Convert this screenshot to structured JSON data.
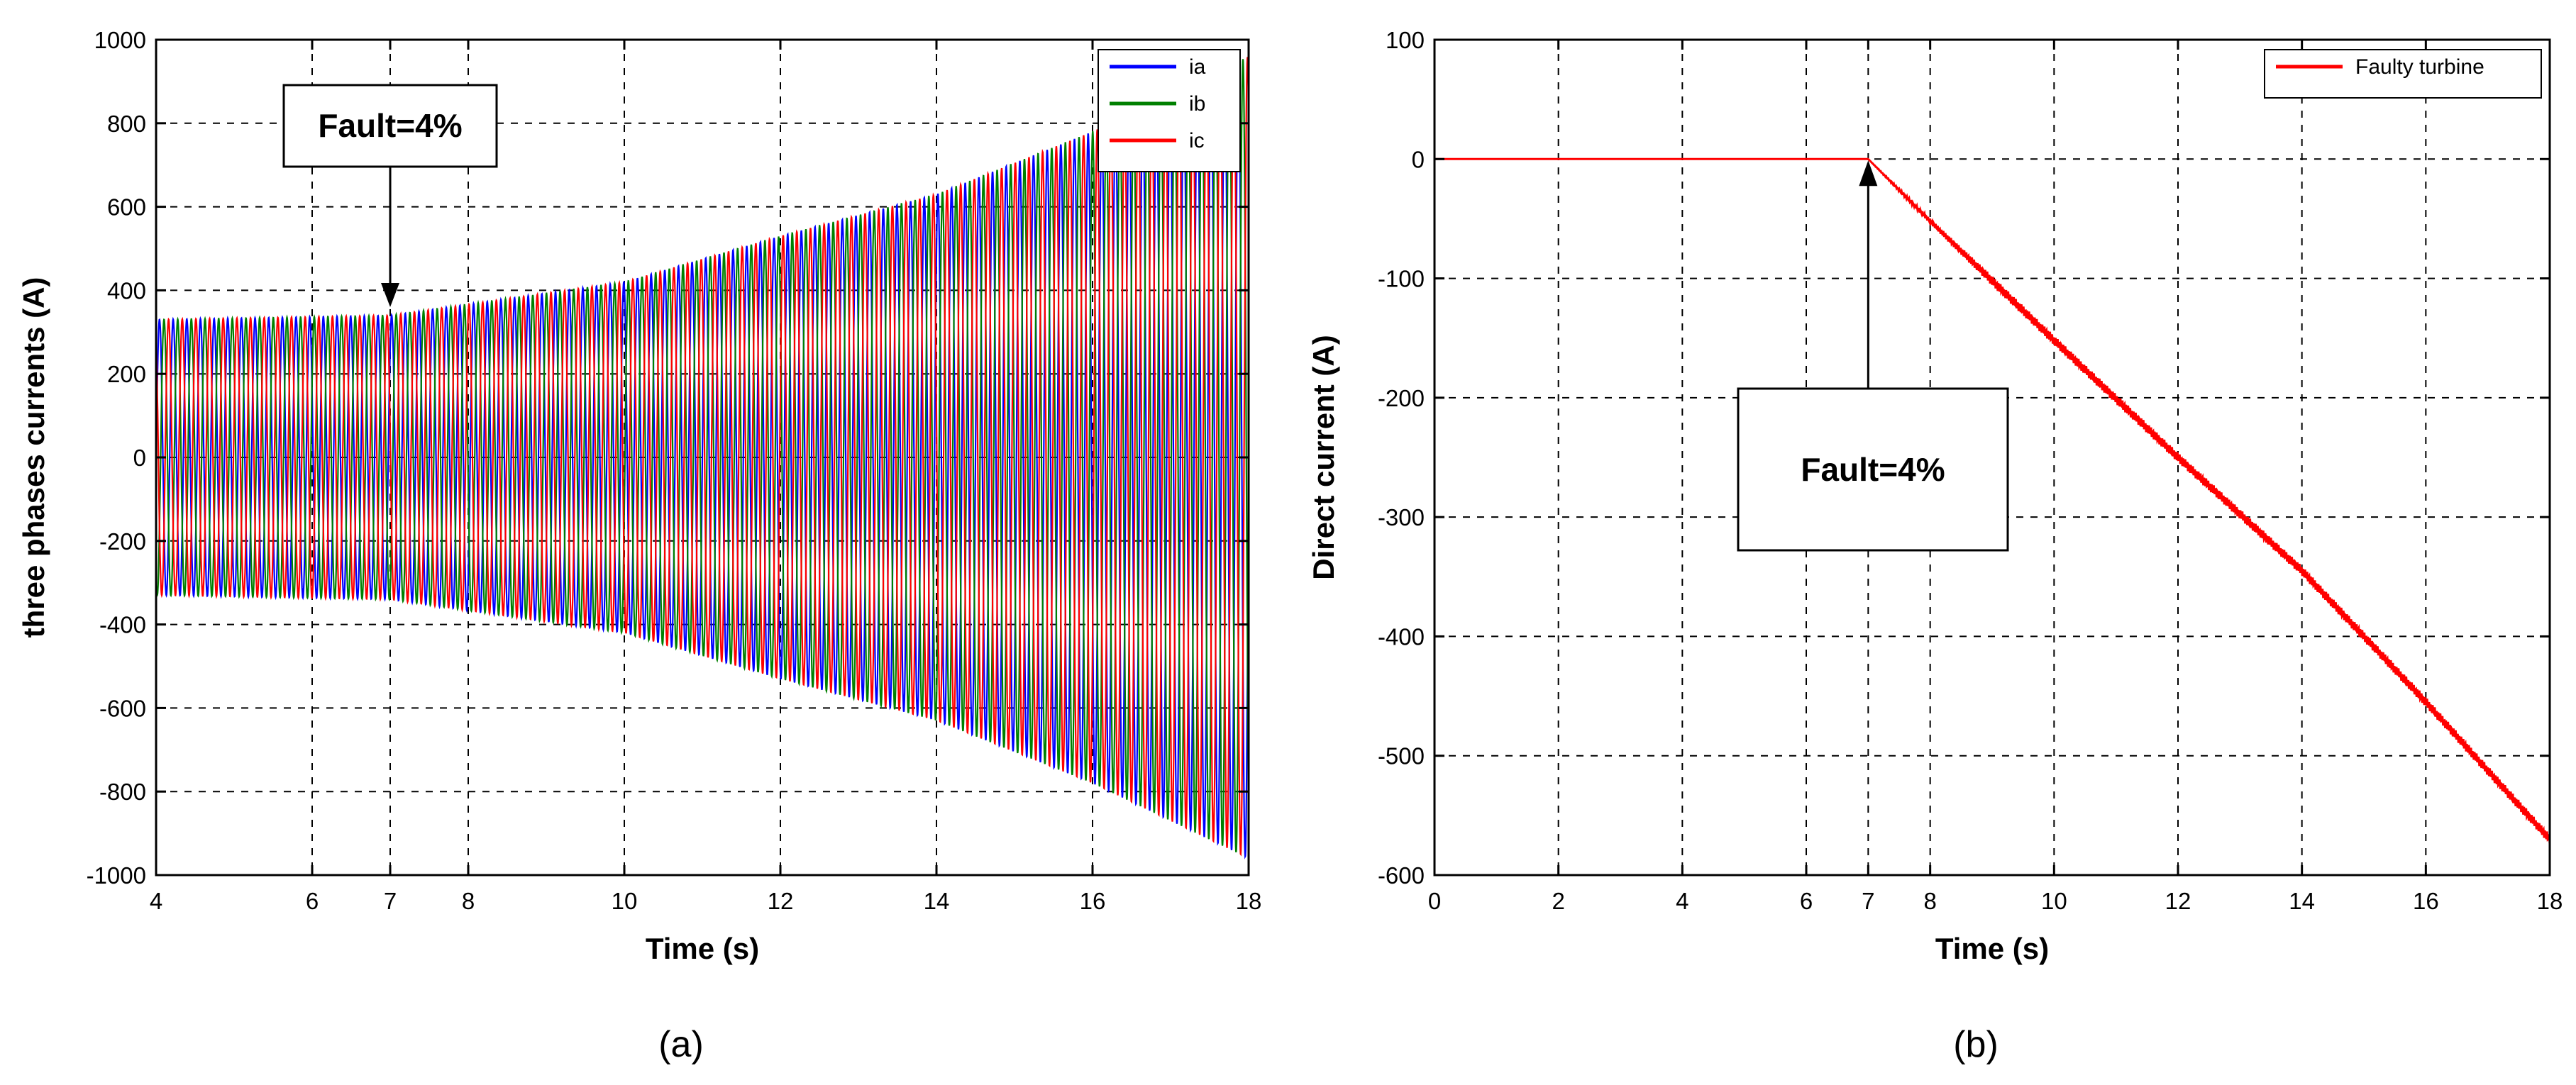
{
  "chart_data": [
    {
      "type": "line",
      "caption": "(a)",
      "xlabel": "Time (s)",
      "ylabel": "three phases currents (A)",
      "xlim": [
        4,
        18
      ],
      "ylim": [
        -1000,
        1000
      ],
      "xticks": [
        4,
        6,
        7,
        8,
        10,
        12,
        14,
        16,
        18
      ],
      "yticks": [
        -1000,
        -800,
        -600,
        -400,
        -200,
        0,
        200,
        400,
        600,
        800,
        1000
      ],
      "grid": true,
      "legend": {
        "position": "top-right"
      },
      "series": [
        {
          "name": "ia",
          "color": "#0000ff",
          "phase_deg": 0
        },
        {
          "name": "ib",
          "color": "#008000",
          "phase_deg": -120
        },
        {
          "name": "ic",
          "color": "#ff0000",
          "phase_deg": 120
        }
      ],
      "amplitude_envelope": {
        "x": [
          4,
          7,
          10,
          12,
          14,
          16,
          18
        ],
        "y": [
          330,
          340,
          420,
          530,
          630,
          780,
          960
        ]
      },
      "cycles_shown": 80,
      "annotation": {
        "text": "Fault=4%",
        "x": 7,
        "y": 360
      }
    },
    {
      "type": "line",
      "caption": "(b)",
      "xlabel": "Time (s)",
      "ylabel": "Direct current (A)",
      "xlim": [
        0,
        18
      ],
      "ylim": [
        -600,
        100
      ],
      "xticks": [
        0,
        2,
        4,
        6,
        7,
        8,
        10,
        12,
        14,
        16,
        18
      ],
      "yticks": [
        -600,
        -500,
        -400,
        -300,
        -200,
        -100,
        0,
        100
      ],
      "grid": true,
      "legend": {
        "position": "top-right"
      },
      "series": [
        {
          "name": "Faulty turbine",
          "color": "#ff0000",
          "x": [
            0,
            7,
            8,
            10,
            12,
            14,
            16,
            18
          ],
          "y": [
            0,
            0,
            -52,
            -152,
            -250,
            -345,
            -455,
            -570
          ]
        }
      ],
      "annotation": {
        "text": "Fault=4%",
        "x": 7,
        "y": 0
      }
    }
  ]
}
